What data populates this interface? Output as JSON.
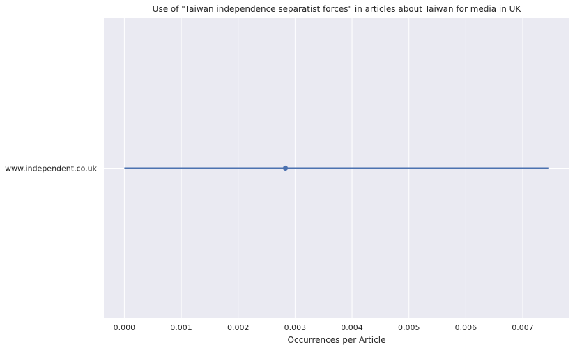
{
  "chart_data": {
    "type": "point",
    "title": "Use of \"Taiwan independence separatist forces\" in articles about Taiwan for media in UK",
    "xlabel": "Occurrences per Article",
    "ylabel": "",
    "categories": [
      "www.independent.co.uk"
    ],
    "series": [
      {
        "values": [
          0.00283
        ],
        "ci_low": [
          0.0
        ],
        "ci_high": [
          0.00745
        ]
      }
    ],
    "xlim": [
      -0.00036,
      0.00782
    ],
    "xticks": [
      "0.000",
      "0.001",
      "0.002",
      "0.003",
      "0.004",
      "0.005",
      "0.006",
      "0.007"
    ],
    "grid": true,
    "colors": {
      "background": "#eaeaf2",
      "grid": "#ffffff",
      "series": "#4c72b0"
    }
  }
}
